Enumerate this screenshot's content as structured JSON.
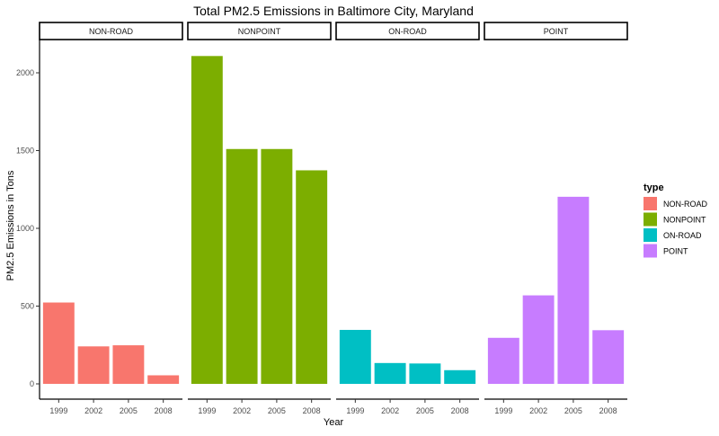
{
  "chart_data": {
    "type": "bar",
    "title": "Total PM2.5 Emissions in Baltimore City, Maryland",
    "xlabel": "Year",
    "ylabel": "PM2.5 Emissions in Tons",
    "categories": [
      "1999",
      "2002",
      "2005",
      "2008"
    ],
    "ylim": [
      0,
      2180
    ],
    "yticks": [
      0,
      500,
      1000,
      1500,
      2000
    ],
    "grid": false,
    "legend": {
      "title": "type",
      "position": "right"
    },
    "series": [
      {
        "name": "NON-ROAD",
        "color": "#F8766D",
        "values": [
          523,
          241,
          248,
          55
        ]
      },
      {
        "name": "NONPOINT",
        "color": "#7CAE00",
        "values": [
          2108,
          1510,
          1510,
          1373
        ]
      },
      {
        "name": "ON-ROAD",
        "color": "#00BFC4",
        "values": [
          347,
          134,
          131,
          88
        ]
      },
      {
        "name": "POINT",
        "color": "#C77CFF",
        "values": [
          296,
          569,
          1203,
          345
        ]
      }
    ]
  }
}
